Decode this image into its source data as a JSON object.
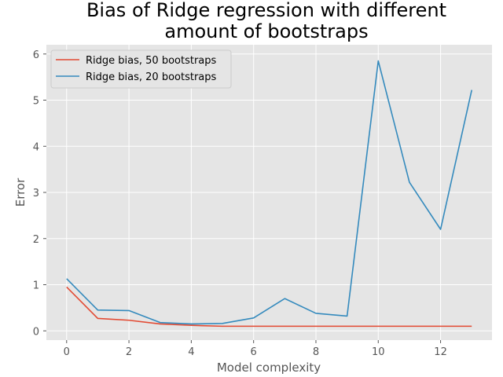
{
  "chart_data": {
    "type": "line",
    "title_lines": [
      "Bias of Ridge regression with different",
      "amount of bootstraps"
    ],
    "xlabel": "Model complexity",
    "ylabel": "Error",
    "xlim": [
      -0.65,
      13.65
    ],
    "ylim": [
      -0.2,
      6.2
    ],
    "xticks": [
      0,
      2,
      4,
      6,
      8,
      10,
      12
    ],
    "yticks": [
      0,
      1,
      2,
      3,
      4,
      5,
      6
    ],
    "grid": true,
    "legend_position": "top-left",
    "x": [
      0,
      1,
      2,
      3,
      4,
      5,
      6,
      7,
      8,
      9,
      10,
      11,
      12,
      13
    ],
    "series": [
      {
        "name": "Ridge bias, 50 bootstraps",
        "color": "#e24a33",
        "values": [
          0.95,
          0.27,
          0.23,
          0.15,
          0.12,
          0.1,
          0.1,
          0.1,
          0.1,
          0.1,
          0.1,
          0.1,
          0.1,
          0.1
        ]
      },
      {
        "name": "Ridge bias, 20 bootstraps",
        "color": "#348abd",
        "values": [
          1.13,
          0.45,
          0.44,
          0.18,
          0.15,
          0.16,
          0.28,
          0.7,
          0.38,
          0.32,
          5.85,
          3.22,
          2.2,
          5.22
        ]
      }
    ]
  }
}
